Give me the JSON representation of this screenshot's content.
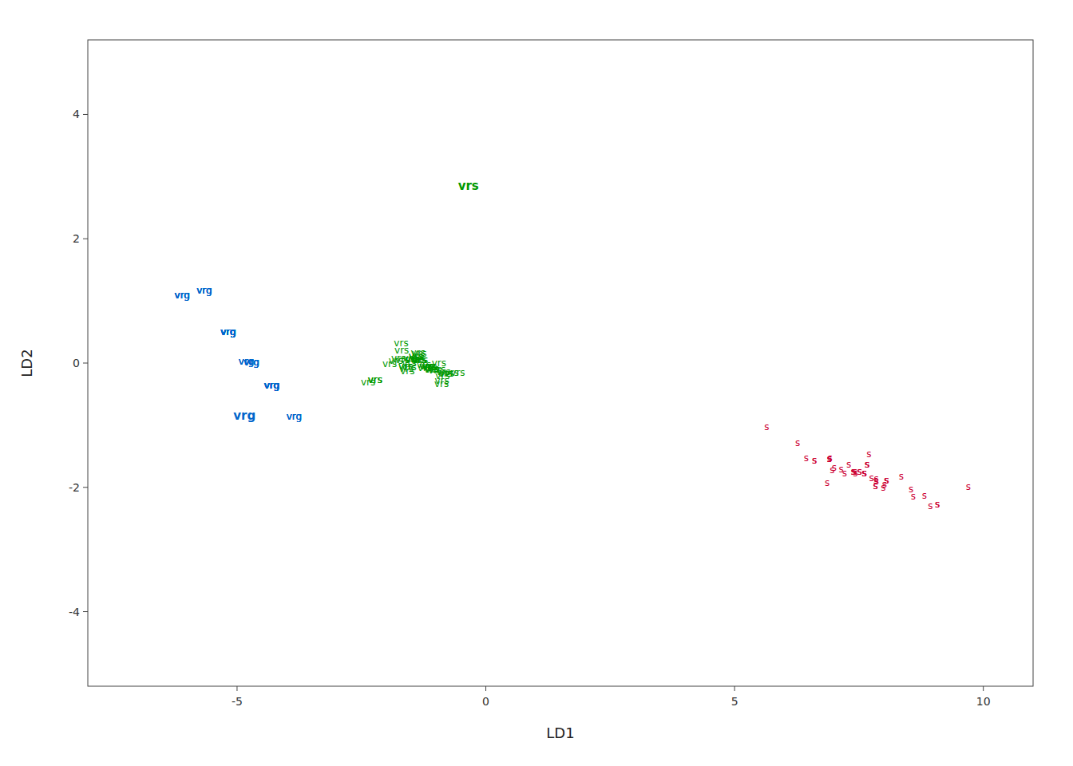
{
  "chart_data": {
    "type": "scatter",
    "xlabel": "LD1",
    "ylabel": "LD2",
    "xlim": [
      -8.0,
      11.0
    ],
    "ylim": [
      -5.2,
      5.2
    ],
    "xticks": [
      -5,
      0,
      5,
      10
    ],
    "yticks": [
      -4,
      -2,
      0,
      2,
      4
    ],
    "grid": false,
    "series": [
      {
        "name": "s",
        "color": "#cc0033",
        "x": [
          7.6076,
          6.8619,
          7.699,
          7.2104,
          7.8346,
          8.5921,
          6.9199,
          7.6648,
          6.4404,
          7.3876,
          8.3484,
          7.4148,
          6.9063,
          6.2663,
          8.9356,
          9.6971,
          8.8142,
          7.6076,
          9.0748,
          8.0538,
          7.426,
          7.8511,
          7.2963,
          7.143,
          7.4148,
          6.9063,
          7.6648,
          7.8469,
          7.7513,
          7.5133,
          7.5133,
          7.8357,
          8.5472,
          9.0748,
          7.3876,
          6.9614,
          7.9884,
          7.8346,
          6.6055,
          7.6648,
          7.6076,
          5.6456,
          6.6055,
          7.6076,
          8.0538,
          6.9063,
          8.0538,
          7.0004,
          8.0121,
          7.3876
        ],
        "values": [
          -1.769,
          -1.92,
          -1.459,
          -1.766,
          -1.981,
          -2.149,
          -1.528,
          -1.634,
          -1.53,
          -1.749,
          -1.827,
          -1.741,
          -1.546,
          -1.285,
          -2.294,
          -1.988,
          -2.133,
          -1.769,
          -2.268,
          -1.881,
          -1.777,
          -1.9,
          -1.637,
          -1.706,
          -1.741,
          -1.546,
          -1.634,
          -1.862,
          -1.849,
          -1.745,
          -1.745,
          -1.893,
          -2.032,
          -2.268,
          -1.749,
          -1.716,
          -1.997,
          -1.981,
          -1.564,
          -1.634,
          -1.769,
          -1.024,
          -1.564,
          -1.769,
          -1.881,
          -1.546,
          -1.881,
          -1.68,
          -1.958,
          -1.749
        ]
      },
      {
        "name": "vrs",
        "color": "#009900",
        "x": [
          -1.7012,
          -1.3361,
          -0.8892,
          -0.8825,
          -1.4758,
          -0.8126,
          -1.3638,
          -2.2262,
          -0.941,
          -1.5373,
          -2.2262,
          -1.0902,
          -1.4058,
          -1.5761,
          -2.3664,
          -2.2262,
          -1.2261,
          -1.3838,
          -1.014,
          -1.5977,
          -0.6878,
          -1.4001,
          -0.5628,
          -1.0717,
          -1.0981,
          -0.8534,
          -0.952,
          -1.1476,
          -1.3298,
          -1.1278,
          -1.3519,
          -1.1901,
          -1.6901,
          -1.7558,
          -1.9317,
          -1.6097,
          -0.7848,
          -1.5183,
          -1.3298,
          -1.6741,
          -1.8059,
          -1.6097,
          -1.308,
          -0.8689,
          -1.1901,
          -1.5397,
          -1.1199,
          -1.2462,
          -1.4758,
          -1.344
        ],
        "values": [
          0.3181,
          0.1558,
          -0.3277,
          -0.2877,
          0.0706,
          -0.1699,
          0.1717,
          -0.2754,
          0.0047,
          -0.0697,
          -0.2754,
          -0.09,
          0.11,
          -0.131,
          -0.3046,
          -0.2754,
          -0.0745,
          0.0694,
          -0.1099,
          -0.0867,
          -0.1494,
          0.0983,
          -0.1539,
          -0.1043,
          -0.0985,
          -0.1437,
          -0.1016,
          -0.0521,
          0.0498,
          -0.0599,
          0.0567,
          -0.0527,
          0.204,
          0.0718,
          -0.0178,
          -0.0479,
          -0.1699,
          0.0784,
          0.0498,
          0.0545,
          0.0348,
          -0.0479,
          0.0479,
          -0.209,
          -0.0527,
          -0.0,
          -0.0612,
          -0.028,
          0.0706,
          0.0571
        ]
      },
      {
        "name": "vrg",
        "color": "#0066cc",
        "x": [
          -5.6581,
          -4.7092,
          -5.177,
          -4.3021,
          -5.177,
          -6.1018,
          -3.853,
          -5.177,
          -5.177,
          -4.3021,
          -4.8136,
          -4.3021,
          -5.177,
          -5.177,
          -3.853,
          -4.7092,
          -5.177,
          -5.177,
          -6.1018,
          -4.3021,
          -4.8143,
          -5.177,
          -6.1018,
          -5.177,
          -4.3021,
          -4.7092,
          -4.3021,
          -4.3021,
          -4.7092,
          -5.177,
          -6.1018,
          -6.1018,
          -4.3021,
          -3.853,
          -4.3021,
          -5.6581,
          -5.177,
          -4.3021,
          -5.177,
          -4.3021,
          -5.177,
          -5.6581,
          -4.3021,
          -5.177,
          -5.6581,
          -4.3021,
          -5.177,
          -4.7092,
          -4.8136,
          -4.3021
        ],
        "values": [
          1.1718,
          0.0186,
          0.5038,
          -0.3648,
          0.5038,
          1.0897,
          -0.8553,
          0.5038,
          0.5038,
          -0.3648,
          0.0282,
          -0.3648,
          0.5038,
          0.5038,
          -0.8553,
          0.0186,
          0.5038,
          0.5038,
          1.0897,
          -0.3648,
          0.0282,
          0.5038,
          1.0897,
          0.5038,
          -0.3648,
          0.0186,
          -0.3648,
          -0.3648,
          0.0186,
          0.5038,
          1.0897,
          1.0897,
          -0.3648,
          -0.8553,
          -0.3648,
          1.1718,
          0.5038,
          -0.3648,
          0.5038,
          -0.3648,
          0.5038,
          1.1718,
          -0.3648,
          0.5038,
          1.1718,
          -0.3648,
          0.5038,
          0.0186,
          0.0282,
          -0.3648
        ]
      }
    ],
    "annotations": [
      {
        "text": "vrs",
        "x": -0.35,
        "y": 2.85,
        "color": "#009900"
      },
      {
        "text": "vrg",
        "x": -4.85,
        "y": -0.85,
        "color": "#0066cc"
      }
    ]
  }
}
